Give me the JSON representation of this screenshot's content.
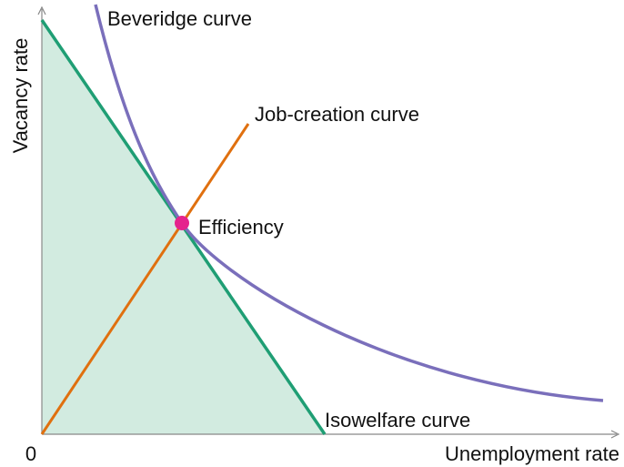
{
  "axes": {
    "y_label": "Vacancy rate",
    "x_label": "Unemployment rate",
    "origin": "0"
  },
  "curves": {
    "beveridge": "Beveridge curve",
    "job_creation": "Job-creation curve",
    "isowelfare": "Isowelfare curve"
  },
  "points": {
    "efficiency": "Efficiency"
  }
}
